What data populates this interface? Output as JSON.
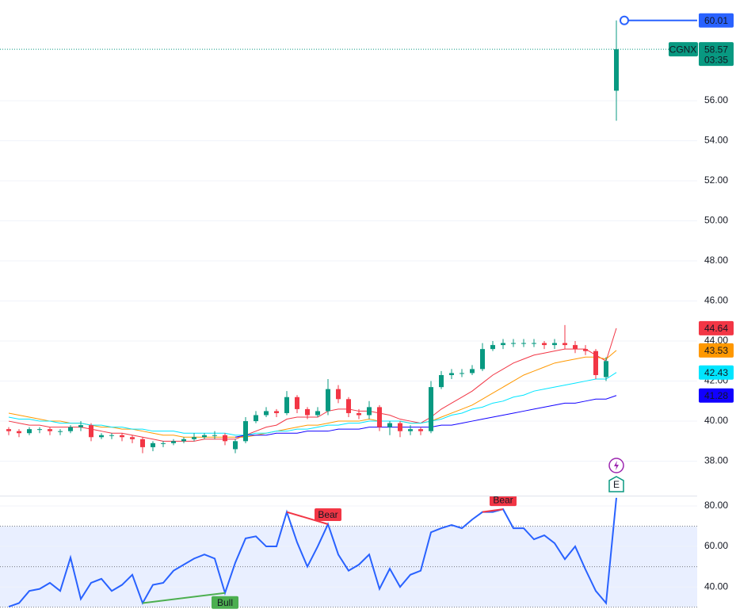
{
  "chart_data": {
    "type": "candlestick",
    "ticker": "CGNX",
    "countdown": "03:35",
    "earnings_marker": "E",
    "up_color": "#089981",
    "down_color": "#f23645",
    "ylim": [
      36.28,
      61.03
    ],
    "yticks": [
      {
        "value": 38,
        "label": "38.00"
      },
      {
        "value": 40,
        "label": "40.00"
      },
      {
        "value": 42,
        "label": "42.00"
      },
      {
        "value": 44,
        "label": "44.00"
      },
      {
        "value": 46,
        "label": "46.00"
      },
      {
        "value": 48,
        "label": "48.00"
      },
      {
        "value": 50,
        "label": "50.00"
      },
      {
        "value": 52,
        "label": "52.00"
      },
      {
        "value": 54,
        "label": "54.00"
      },
      {
        "value": 56,
        "label": "56.00"
      }
    ],
    "open": [
      39.6,
      39.5,
      39.4,
      39.6,
      39.6,
      39.5,
      39.5,
      39.7,
      39.8,
      39.2,
      39.3,
      39.3,
      39.2,
      39.1,
      38.7,
      38.9,
      38.9,
      39.0,
      39.1,
      39.2,
      39.3,
      39.3,
      38.6,
      39.0,
      40.0,
      40.3,
      40.5,
      40.4,
      41.2,
      40.6,
      40.3,
      40.5,
      41.6,
      41.1,
      40.4,
      40.3,
      40.7,
      39.7,
      39.9,
      39.5,
      39.6,
      39.5,
      41.7,
      42.3,
      42.4,
      42.4,
      42.6,
      43.6,
      43.8,
      43.9,
      43.9,
      43.9,
      43.9,
      43.8,
      43.9,
      43.8,
      43.6,
      43.5,
      42.2,
      56.5
    ],
    "high": [
      39.7,
      39.6,
      39.7,
      39.7,
      39.7,
      39.6,
      39.8,
      40.0,
      39.9,
      39.4,
      39.4,
      39.4,
      39.3,
      39.2,
      39.0,
      39.0,
      39.1,
      39.2,
      39.4,
      39.4,
      39.5,
      39.4,
      39.1,
      40.2,
      40.5,
      40.7,
      40.6,
      41.5,
      41.3,
      40.7,
      40.7,
      42.1,
      41.8,
      41.2,
      40.6,
      41.0,
      40.8,
      40.0,
      40.0,
      39.8,
      39.7,
      42.0,
      42.5,
      42.6,
      42.6,
      42.8,
      43.9,
      44.0,
      44.1,
      44.1,
      44.1,
      44.1,
      44.0,
      44.1,
      44.8,
      44.0,
      43.8,
      43.6,
      43.2,
      60.01
    ],
    "low": [
      39.3,
      39.2,
      39.3,
      39.4,
      39.3,
      39.3,
      39.4,
      39.5,
      39.0,
      39.1,
      39.1,
      39.0,
      38.9,
      38.4,
      38.5,
      38.7,
      38.8,
      38.9,
      39.0,
      39.1,
      39.1,
      38.8,
      38.4,
      38.9,
      39.9,
      40.2,
      40.2,
      40.3,
      40.4,
      40.1,
      40.2,
      40.3,
      40.9,
      40.2,
      40.1,
      40.1,
      39.5,
      39.3,
      39.2,
      39.3,
      39.3,
      39.4,
      41.6,
      42.1,
      42.2,
      42.3,
      42.5,
      43.5,
      43.6,
      43.7,
      43.7,
      43.7,
      43.6,
      43.6,
      43.6,
      43.4,
      43.3,
      42.1,
      42.0,
      55.0
    ],
    "close": [
      39.5,
      39.4,
      39.6,
      39.6,
      39.5,
      39.5,
      39.7,
      39.8,
      39.2,
      39.3,
      39.3,
      39.2,
      39.1,
      38.7,
      38.9,
      38.9,
      39.0,
      39.1,
      39.2,
      39.3,
      39.3,
      39.0,
      39.0,
      40.0,
      40.3,
      40.5,
      40.4,
      41.2,
      40.6,
      40.3,
      40.5,
      41.6,
      41.1,
      40.4,
      40.3,
      40.7,
      39.7,
      39.9,
      39.5,
      39.6,
      39.5,
      41.7,
      42.3,
      42.4,
      42.4,
      42.6,
      43.6,
      43.8,
      43.9,
      43.9,
      43.9,
      43.9,
      43.8,
      43.9,
      43.8,
      43.6,
      43.5,
      42.3,
      43.0,
      58.57
    ],
    "series": [
      {
        "color": "#f23645",
        "values": [
          40.0,
          39.9,
          39.8,
          39.8,
          39.7,
          39.7,
          39.7,
          39.7,
          39.6,
          39.5,
          39.4,
          39.4,
          39.3,
          39.2,
          39.1,
          39.0,
          39.0,
          39.0,
          39.0,
          39.1,
          39.1,
          39.1,
          39.1,
          39.3,
          39.5,
          39.7,
          39.8,
          40.1,
          40.2,
          40.2,
          40.2,
          40.5,
          40.6,
          40.6,
          40.5,
          40.5,
          40.4,
          40.3,
          40.1,
          40.0,
          39.9,
          40.2,
          40.6,
          40.9,
          41.2,
          41.5,
          41.9,
          42.3,
          42.6,
          42.9,
          43.1,
          43.3,
          43.4,
          43.5,
          43.6,
          43.6,
          43.6,
          43.3,
          43.0,
          44.64
        ]
      },
      {
        "color": "#ff9800",
        "values": [
          40.4,
          40.3,
          40.2,
          40.1,
          40.0,
          40.0,
          39.9,
          39.9,
          39.8,
          39.7,
          39.7,
          39.6,
          39.6,
          39.5,
          39.4,
          39.3,
          39.3,
          39.2,
          39.2,
          39.2,
          39.2,
          39.2,
          39.2,
          39.2,
          39.3,
          39.4,
          39.5,
          39.6,
          39.7,
          39.8,
          39.8,
          39.9,
          40.0,
          40.0,
          40.0,
          40.1,
          40.0,
          40.0,
          40.0,
          39.9,
          39.9,
          40.0,
          40.2,
          40.4,
          40.6,
          40.8,
          41.1,
          41.4,
          41.7,
          42.0,
          42.3,
          42.5,
          42.7,
          42.9,
          43.0,
          43.1,
          43.2,
          43.2,
          43.1,
          43.53
        ]
      },
      {
        "color": "#00e5ff",
        "values": [
          40.2,
          40.1,
          40.1,
          40.0,
          40.0,
          39.9,
          39.9,
          39.9,
          39.8,
          39.8,
          39.7,
          39.7,
          39.6,
          39.6,
          39.5,
          39.5,
          39.5,
          39.4,
          39.4,
          39.4,
          39.4,
          39.4,
          39.3,
          39.3,
          39.4,
          39.4,
          39.5,
          39.5,
          39.6,
          39.6,
          39.7,
          39.8,
          39.8,
          39.9,
          39.9,
          40.0,
          40.0,
          40.0,
          40.0,
          39.9,
          39.9,
          40.0,
          40.1,
          40.3,
          40.4,
          40.6,
          40.7,
          40.9,
          41.0,
          41.2,
          41.3,
          41.5,
          41.6,
          41.7,
          41.8,
          41.9,
          42.0,
          42.1,
          42.1,
          42.43
        ]
      },
      {
        "color": "#1100ff",
        "values": [
          null,
          null,
          null,
          null,
          null,
          null,
          null,
          null,
          null,
          null,
          null,
          null,
          null,
          null,
          null,
          null,
          null,
          null,
          null,
          null,
          null,
          null,
          39.2,
          39.3,
          39.3,
          39.3,
          39.4,
          39.4,
          39.4,
          39.5,
          39.5,
          39.5,
          39.6,
          39.6,
          39.6,
          39.7,
          39.7,
          39.7,
          39.7,
          39.7,
          39.7,
          39.7,
          39.8,
          39.8,
          39.9,
          40.0,
          40.1,
          40.2,
          40.3,
          40.4,
          40.5,
          40.6,
          40.7,
          40.8,
          40.9,
          40.9,
          41.0,
          41.1,
          41.1,
          41.28
        ]
      }
    ],
    "rsi": {
      "color": "#2962ff",
      "ylim": [
        27.1,
        85.1
      ],
      "yticks": [
        {
          "value": 40,
          "label": "40.00"
        },
        {
          "value": 60,
          "label": "60.00"
        },
        {
          "value": 80,
          "label": "80.00"
        }
      ],
      "levels": [
        30,
        50,
        70
      ],
      "values": [
        30.2,
        32,
        38,
        39,
        42,
        38,
        54.5,
        34,
        42,
        44,
        38,
        41,
        46,
        32,
        41,
        42,
        48,
        51,
        54,
        56,
        54,
        37,
        52,
        64,
        65,
        60,
        60,
        77,
        62,
        50,
        60,
        71,
        56,
        48,
        51,
        56,
        39,
        49,
        40,
        46,
        48,
        67,
        69,
        70.6,
        69,
        73.3,
        77,
        77,
        78.4,
        69,
        69,
        63.5,
        65.5,
        61.6,
        53.7,
        60,
        48.6,
        38,
        32,
        84
      ],
      "divergence_labels": [
        "Bull",
        "Bear",
        "Bear"
      ]
    }
  }
}
